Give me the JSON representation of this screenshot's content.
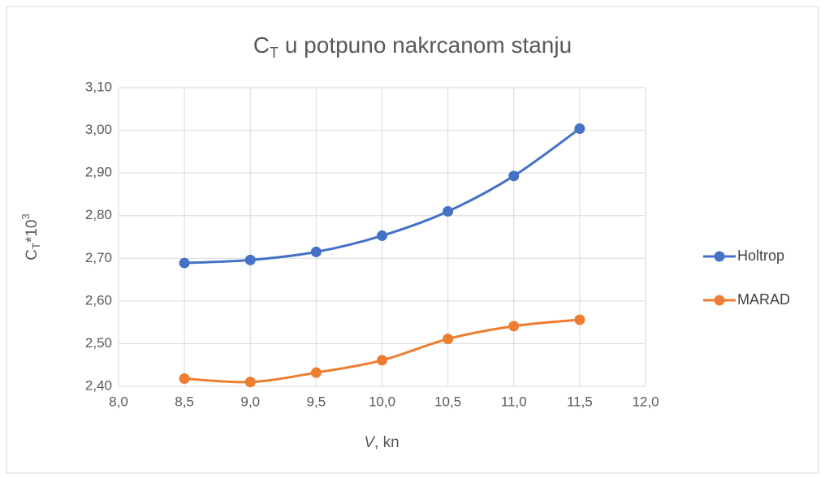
{
  "chart_data": {
    "type": "line",
    "title": [
      "C",
      "T",
      " u potpuno nakrcanom stanju"
    ],
    "x_label": [
      "V",
      ", kn"
    ],
    "y_label": [
      "C",
      "T",
      "*10",
      "3"
    ],
    "x": [
      8.5,
      9.0,
      9.5,
      10.0,
      10.5,
      11.0,
      11.5
    ],
    "series": [
      {
        "name": "Holtrop",
        "color": "#4472c4",
        "values": [
          2.689,
          2.696,
          2.715,
          2.753,
          2.81,
          2.893,
          3.004
        ]
      },
      {
        "name": "MARAD",
        "color": "#ed7d31",
        "values": [
          2.418,
          2.41,
          2.432,
          2.461,
          2.511,
          2.541,
          2.556
        ]
      }
    ],
    "xlim": [
      8.0,
      12.0
    ],
    "xticks": [
      {
        "value": 8.0,
        "label": "8,0"
      },
      {
        "value": 8.5,
        "label": "8,5"
      },
      {
        "value": 9.0,
        "label": "9,0"
      },
      {
        "value": 9.5,
        "label": "9,5"
      },
      {
        "value": 10.0,
        "label": "10,0"
      },
      {
        "value": 10.5,
        "label": "10,5"
      },
      {
        "value": 11.0,
        "label": "11,0"
      },
      {
        "value": 11.5,
        "label": "11,5"
      },
      {
        "value": 12.0,
        "label": "12,0"
      }
    ],
    "ylim": [
      2.4,
      3.1
    ],
    "yticks": [
      {
        "value": 2.4,
        "label": "2,40"
      },
      {
        "value": 2.5,
        "label": "2,50"
      },
      {
        "value": 2.6,
        "label": "2,60"
      },
      {
        "value": 2.7,
        "label": "2,70"
      },
      {
        "value": 2.8,
        "label": "2,80"
      },
      {
        "value": 2.9,
        "label": "2,90"
      },
      {
        "value": 3.0,
        "label": "3,00"
      },
      {
        "value": 3.1,
        "label": "3,10"
      }
    ],
    "grid": true,
    "smooth": true,
    "legend": "right"
  }
}
